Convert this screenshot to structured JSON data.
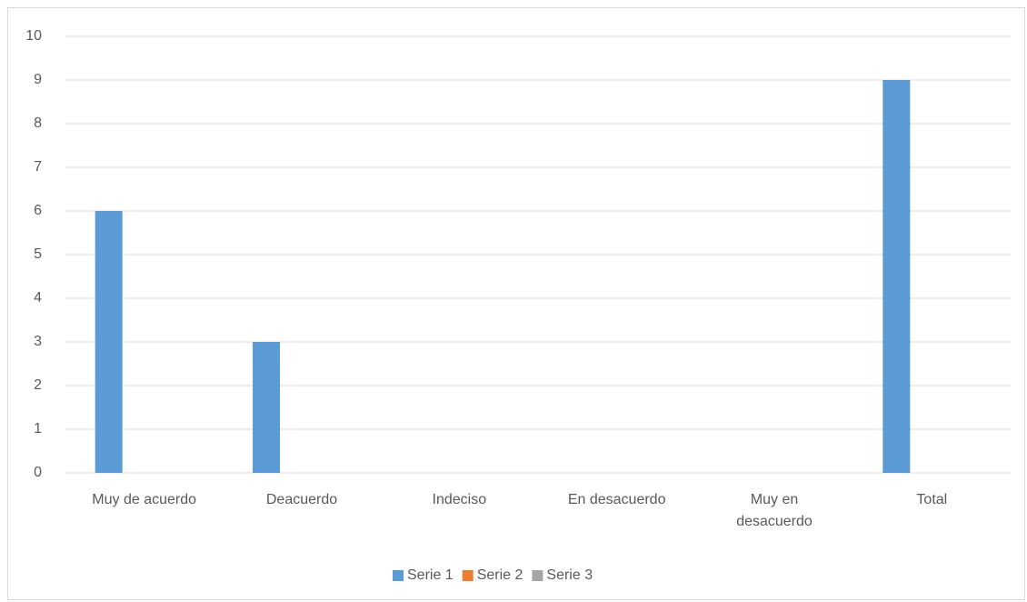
{
  "chart_data": {
    "type": "bar",
    "categories": [
      "Muy de acuerdo",
      "Deacuerdo",
      "Indeciso",
      "En desacuerdo",
      "Muy en desacuerdo",
      "Total"
    ],
    "series": [
      {
        "name": "Serie 1",
        "color": "#5b9bd5",
        "values": [
          6,
          3,
          null,
          null,
          null,
          9
        ]
      },
      {
        "name": "Serie 2",
        "color": "#ed7d31",
        "values": [
          null,
          null,
          null,
          null,
          null,
          null
        ]
      },
      {
        "name": "Serie 3",
        "color": "#a5a5a5",
        "values": [
          null,
          null,
          null,
          null,
          null,
          null
        ]
      }
    ],
    "ylim": [
      0,
      10
    ],
    "yticks": [
      0,
      1,
      2,
      3,
      4,
      5,
      6,
      7,
      8,
      9,
      10
    ],
    "grid": true,
    "legend": "bottom"
  }
}
